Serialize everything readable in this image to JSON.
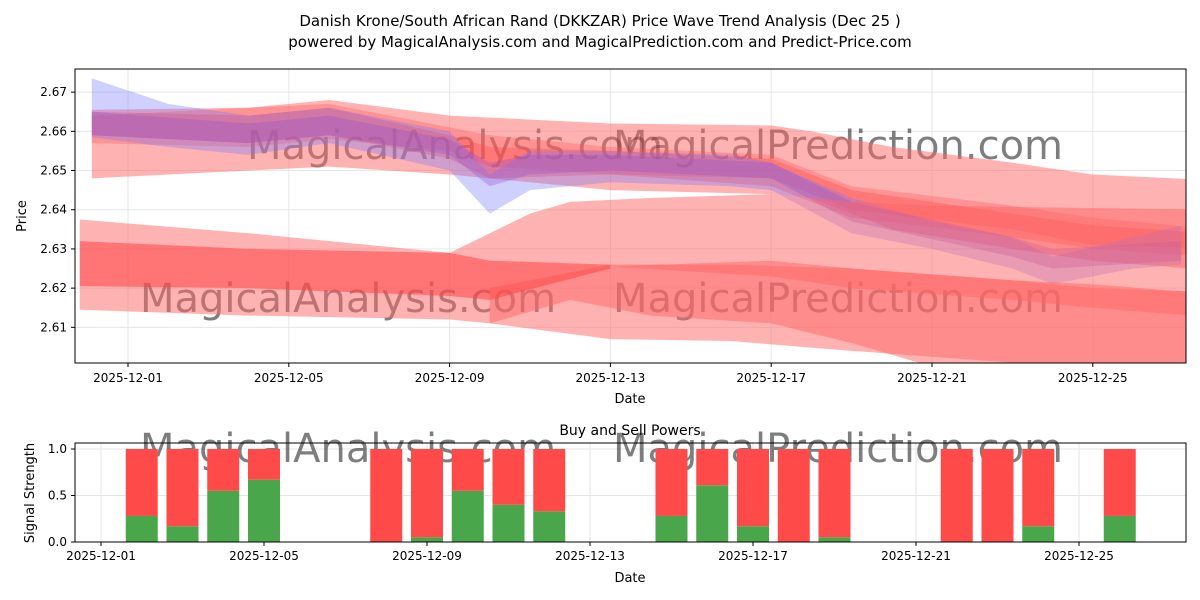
{
  "title": "Danish Krone/South African Rand (DKKZAR) Price Wave Trend Analysis (Dec 25 )",
  "subtitle": "powered by MagicalAnalysis.com and MagicalPrediction.com and Predict-Price.com",
  "watermarks": [
    "MagicalAnalysis.com",
    "MagicalPrediction.com"
  ],
  "chart_data": [
    {
      "type": "area",
      "title": "",
      "xlabel": "Date",
      "ylabel": "Price",
      "xlim": [
        "2025-11-29.7",
        "2025-12-27.3"
      ],
      "ylim": [
        2.6009,
        2.6759
      ],
      "xticks": [
        "2025-12-01",
        "2025-12-05",
        "2025-12-09",
        "2025-12-13",
        "2025-12-17",
        "2025-12-21",
        "2025-12-25"
      ],
      "yticks": [
        "2.61",
        "2.62",
        "2.63",
        "2.64",
        "2.65",
        "2.66",
        "2.67"
      ],
      "grid": true,
      "bands": [
        {
          "name": "red-upper-wide",
          "color": "#ff6666",
          "opacity": 0.5,
          "points": [
            [
              -0.9,
              2.648,
              2.6655
            ],
            [
              3,
              2.65,
              2.666
            ],
            [
              5,
              2.651,
              2.668
            ],
            [
              8,
              2.649,
              2.664
            ],
            [
              9,
              2.648,
              2.6635
            ],
            [
              12,
              2.645,
              2.662
            ],
            [
              16,
              2.644,
              2.6615
            ],
            [
              17,
              2.643,
              2.66
            ],
            [
              19,
              2.635,
              2.656
            ],
            [
              22,
              2.63,
              2.652
            ],
            [
              24,
              2.627,
              2.649
            ],
            [
              27,
              2.6245,
              2.6475
            ]
          ]
        },
        {
          "name": "red-upper-mid",
          "color": "#ff5555",
          "opacity": 0.35,
          "points": [
            [
              -0.9,
              2.657,
              2.664
            ],
            [
              3,
              2.656,
              2.666
            ],
            [
              5,
              2.658,
              2.667
            ],
            [
              8,
              2.655,
              2.661
            ],
            [
              9,
              2.651,
              2.659
            ],
            [
              12,
              2.649,
              2.656
            ],
            [
              16,
              2.648,
              2.654
            ],
            [
              18,
              2.64,
              2.646
            ],
            [
              22,
              2.635,
              2.641
            ],
            [
              24,
              2.631,
              2.638
            ],
            [
              27,
              2.63,
              2.635
            ]
          ]
        },
        {
          "name": "red-upper-trend",
          "color": "#ff4444",
          "opacity": 0.35,
          "points": [
            [
              -0.9,
              2.659,
              2.665
            ],
            [
              3,
              2.657,
              2.664
            ],
            [
              5,
              2.659,
              2.666
            ],
            [
              8,
              2.653,
              2.659
            ],
            [
              9,
              2.648,
              2.656
            ],
            [
              12,
              2.649,
              2.655
            ],
            [
              16,
              2.646,
              2.653
            ],
            [
              18,
              2.638,
              2.645
            ],
            [
              22,
              2.633,
              2.639
            ],
            [
              24,
              2.63,
              2.636
            ],
            [
              27,
              2.628,
              2.634
            ]
          ]
        },
        {
          "name": "blue-trend",
          "color": "#7777ff",
          "opacity": 0.35,
          "points": [
            [
              -0.9,
              2.6585,
              2.6735
            ],
            [
              1,
              2.656,
              2.667
            ],
            [
              3,
              2.654,
              2.664
            ],
            [
              5,
              2.657,
              2.666
            ],
            [
              8,
              2.65,
              2.66
            ],
            [
              9,
              2.639,
              2.649
            ],
            [
              10,
              2.645,
              2.655
            ],
            [
              12,
              2.647,
              2.655
            ],
            [
              15,
              2.646,
              2.654
            ],
            [
              16,
              2.645,
              2.652
            ],
            [
              18,
              2.634,
              2.643
            ],
            [
              20,
              2.63,
              2.637
            ],
            [
              22,
              2.625,
              2.633
            ],
            [
              23,
              2.621,
              2.628
            ],
            [
              25,
              2.625,
              2.633
            ],
            [
              26.2,
              2.626,
              2.636
            ]
          ]
        },
        {
          "name": "purple-trend",
          "color": "#9955cc",
          "opacity": 0.35,
          "points": [
            [
              -0.9,
              2.659,
              2.665
            ],
            [
              3,
              2.657,
              2.662
            ],
            [
              5,
              2.659,
              2.664
            ],
            [
              8,
              2.654,
              2.658
            ],
            [
              9,
              2.646,
              2.652
            ],
            [
              10,
              2.649,
              2.654
            ],
            [
              12,
              2.65,
              2.654
            ],
            [
              16,
              2.648,
              2.652
            ],
            [
              18,
              2.637,
              2.642
            ],
            [
              22,
              2.628,
              2.633
            ],
            [
              23,
              2.625,
              2.63
            ],
            [
              26.2,
              2.627,
              2.632
            ]
          ]
        },
        {
          "name": "red-lower-wide",
          "color": "#ff6666",
          "opacity": 0.5,
          "points": [
            [
              -1.2,
              2.6145,
              2.6375
            ],
            [
              3,
              2.613,
              2.634
            ],
            [
              8,
              2.612,
              2.629
            ],
            [
              9,
              2.611,
              2.634
            ],
            [
              10,
              2.614,
              2.639
            ],
            [
              11,
              2.617,
              2.642
            ],
            [
              13,
              2.613,
              2.643
            ],
            [
              16,
              2.611,
              2.644
            ],
            [
              18,
              2.606,
              2.642
            ],
            [
              20,
              2.6,
              2.641
            ],
            [
              27,
              2.6,
              2.64
            ]
          ]
        },
        {
          "name": "red-lower-floor",
          "color": "#ff6666",
          "opacity": 0.5,
          "points": [
            [
              9,
              2.611,
              2.62
            ],
            [
              12,
              2.607,
              2.626
            ],
            [
              15,
              2.6065,
              2.626
            ],
            [
              18,
              2.604,
              2.625
            ],
            [
              22,
              2.601,
              2.622
            ],
            [
              24,
              2.599,
              2.62
            ],
            [
              27,
              2.6,
              2.619
            ]
          ]
        },
        {
          "name": "red-lower-dark",
          "color": "#ff4444",
          "opacity": 0.55,
          "points": [
            [
              -1.2,
              2.6205,
              2.632
            ],
            [
              3,
              2.62,
              2.63
            ],
            [
              8,
              2.618,
              2.629
            ],
            [
              9,
              2.617,
              2.627
            ],
            [
              12,
              2.625,
              2.626
            ]
          ]
        },
        {
          "name": "red-lower-edge",
          "color": "#ff6666",
          "opacity": 0.5,
          "points": [
            [
              12,
              2.6255,
              2.6255
            ],
            [
              16,
              2.623,
              2.627
            ],
            [
              18,
              2.62,
              2.625
            ],
            [
              22,
              2.617,
              2.622
            ],
            [
              24,
              2.615,
              2.621
            ],
            [
              27,
              2.6125,
              2.6185
            ]
          ]
        }
      ]
    },
    {
      "type": "bar",
      "title": "Buy and Sell Powers",
      "xlabel": "Date",
      "ylabel": "Signal Strength",
      "ylim": [
        0,
        1.05
      ],
      "yticks": [
        "0.0",
        "0.5",
        "1.0"
      ],
      "xticks": [
        "2025-12-01",
        "2025-12-05",
        "2025-12-09",
        "2025-12-13",
        "2025-12-17",
        "2025-12-21",
        "2025-12-25"
      ],
      "categories": [
        "2025-12-02",
        "2025-12-03",
        "2025-12-04",
        "2025-12-05",
        "2025-12-08",
        "2025-12-09",
        "2025-12-10",
        "2025-12-11",
        "2025-12-12",
        "2025-12-15",
        "2025-12-16",
        "2025-12-17",
        "2025-12-18",
        "2025-12-19",
        "2025-12-22",
        "2025-12-23",
        "2025-12-24",
        "2025-12-26"
      ],
      "series": [
        {
          "name": "Buy",
          "color": "#4aa64a",
          "values": [
            0.28,
            0.17,
            0.55,
            0.67,
            0.0,
            0.05,
            0.55,
            0.4,
            0.33,
            0.28,
            0.61,
            0.17,
            0.0,
            0.05,
            0.0,
            0.0,
            0.17,
            0.28
          ]
        },
        {
          "name": "Sell",
          "color": "#ff4a4a",
          "values": [
            0.72,
            0.83,
            0.45,
            0.33,
            1.0,
            0.95,
            0.45,
            0.6,
            0.67,
            0.72,
            0.39,
            0.83,
            1.0,
            0.95,
            1.0,
            1.0,
            0.83,
            0.72
          ]
        }
      ]
    }
  ]
}
